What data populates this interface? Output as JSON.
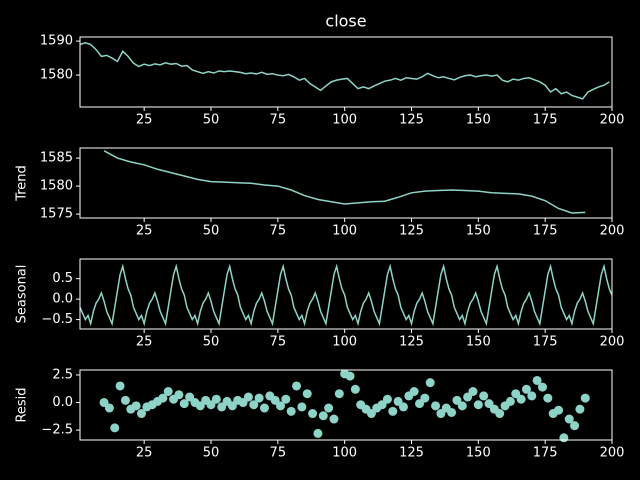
{
  "chart_data": [
    {
      "type": "line",
      "title": "close",
      "color": "#8dd3c7",
      "x": [
        1,
        3,
        5,
        7,
        9,
        11,
        13,
        15,
        17,
        19,
        21,
        23,
        25,
        27,
        29,
        31,
        33,
        35,
        37,
        39,
        41,
        43,
        45,
        47,
        49,
        51,
        53,
        55,
        57,
        59,
        61,
        63,
        65,
        67,
        69,
        71,
        73,
        75,
        77,
        79,
        81,
        83,
        85,
        87,
        89,
        91,
        93,
        95,
        97,
        99,
        101,
        103,
        105,
        107,
        109,
        111,
        113,
        115,
        117,
        119,
        121,
        123,
        125,
        127,
        129,
        131,
        133,
        135,
        137,
        139,
        141,
        143,
        145,
        147,
        149,
        151,
        153,
        155,
        157,
        159,
        161,
        163,
        165,
        167,
        169,
        171,
        173,
        175,
        177,
        179,
        181,
        183,
        185,
        187,
        189,
        191,
        193,
        195,
        197,
        199
      ],
      "values": [
        1589,
        1589.5,
        1589,
        1587.5,
        1585.5,
        1585.8,
        1585,
        1584,
        1587,
        1585.5,
        1583.5,
        1582.5,
        1583.2,
        1582.8,
        1583.3,
        1583,
        1583.6,
        1583.2,
        1583.4,
        1582.6,
        1582.8,
        1581.5,
        1581,
        1580.5,
        1581,
        1580.6,
        1581.2,
        1581,
        1581.2,
        1581,
        1580.8,
        1580.4,
        1580.6,
        1580.3,
        1580.8,
        1580.2,
        1580.4,
        1580,
        1579.8,
        1580.2,
        1579.5,
        1578.5,
        1579,
        1577.5,
        1576.5,
        1575.5,
        1576.8,
        1578,
        1578.5,
        1578.8,
        1579,
        1577.5,
        1576,
        1576.5,
        1576,
        1576.8,
        1577.5,
        1578.2,
        1578.5,
        1579,
        1578.5,
        1579.2,
        1579,
        1578.8,
        1579.5,
        1580.5,
        1579.8,
        1579.2,
        1579.5,
        1579,
        1578.6,
        1579.3,
        1579.8,
        1580,
        1579.5,
        1579.8,
        1580,
        1579.7,
        1580,
        1578.5,
        1578,
        1578.8,
        1578.5,
        1579,
        1579.2,
        1578.6,
        1578,
        1577,
        1575,
        1576,
        1574.5,
        1575,
        1574,
        1573.5,
        1573,
        1575,
        1575.8,
        1576.5,
        1577,
        1578
      ],
      "xlim": [
        1,
        200
      ],
      "xticks": [
        25,
        50,
        75,
        100,
        125,
        150,
        175,
        200
      ],
      "ylim": [
        1570.6,
        1591.2
      ],
      "yticks": [
        1580,
        1590
      ]
    },
    {
      "type": "line",
      "ylabel": "Trend",
      "color": "#8dd3c7",
      "x": [
        10,
        15,
        20,
        25,
        30,
        35,
        40,
        45,
        50,
        55,
        60,
        65,
        70,
        75,
        80,
        85,
        90,
        95,
        100,
        105,
        110,
        115,
        120,
        125,
        130,
        135,
        140,
        145,
        150,
        155,
        160,
        165,
        170,
        175,
        180,
        185,
        190
      ],
      "values": [
        1586.3,
        1585,
        1584.3,
        1583.8,
        1583,
        1582.4,
        1581.8,
        1581.2,
        1580.8,
        1580.7,
        1580.6,
        1580.5,
        1580.2,
        1580,
        1579.3,
        1578.3,
        1577.6,
        1577.2,
        1576.8,
        1577,
        1577.2,
        1577.3,
        1578,
        1578.8,
        1579.1,
        1579.2,
        1579.3,
        1579.2,
        1579.1,
        1578.8,
        1578.7,
        1578.6,
        1578.2,
        1577.4,
        1576,
        1575.2,
        1575.3
      ],
      "xlim": [
        1,
        200
      ],
      "xticks": [
        25,
        50,
        75,
        100,
        125,
        150,
        175,
        200
      ],
      "ylim": [
        1574.3,
        1586.8
      ],
      "yticks": [
        1575,
        1580,
        1585
      ]
    },
    {
      "type": "line",
      "ylabel": "Seasonal",
      "color": "#8dd3c7",
      "x": [
        1,
        2,
        3,
        4,
        5,
        6,
        7,
        8,
        9,
        10,
        11,
        12,
        13,
        14,
        15,
        16,
        17,
        18,
        19,
        20,
        21,
        22,
        23,
        24,
        25,
        26,
        27,
        28,
        29,
        30,
        31,
        32,
        33,
        34,
        35,
        36,
        37,
        38,
        39,
        40,
        41,
        42,
        43,
        44,
        45,
        46,
        47,
        48,
        49,
        50,
        51,
        52,
        53,
        54,
        55,
        56,
        57,
        58,
        59,
        60,
        61,
        62,
        63,
        64,
        65,
        66,
        67,
        68,
        69,
        70,
        71,
        72,
        73,
        74,
        75,
        76,
        77,
        78,
        79,
        80,
        81,
        82,
        83,
        84,
        85,
        86,
        87,
        88,
        89,
        90,
        91,
        92,
        93,
        94,
        95,
        96,
        97,
        98,
        99,
        100,
        101,
        102,
        103,
        104,
        105,
        106,
        107,
        108,
        109,
        110,
        111,
        112,
        113,
        114,
        115,
        116,
        117,
        118,
        119,
        120,
        121,
        122,
        123,
        124,
        125,
        126,
        127,
        128,
        129,
        130,
        131,
        132,
        133,
        134,
        135,
        136,
        137,
        138,
        139,
        140,
        141,
        142,
        143,
        144,
        145,
        146,
        147,
        148,
        149,
        150,
        151,
        152,
        153,
        154,
        155,
        156,
        157,
        158,
        159,
        160,
        161,
        162,
        163,
        164,
        165,
        166,
        167,
        168,
        169,
        170,
        171,
        172,
        173,
        174,
        175,
        176,
        177,
        178,
        179,
        180,
        181,
        182,
        183,
        184,
        185,
        186,
        187,
        188,
        189,
        190,
        191,
        192,
        193,
        194,
        195,
        196,
        197,
        198,
        199,
        200
      ],
      "values": [
        -0.2,
        -0.35,
        -0.5,
        -0.4,
        -0.6,
        -0.3,
        -0.1,
        0,
        0.15,
        -0.05,
        -0.3,
        -0.45,
        -0.6,
        -0.2,
        0.2,
        0.6,
        0.8,
        0.5,
        0.25,
        0.1,
        -0.2,
        -0.35,
        -0.5,
        -0.4,
        -0.6,
        -0.3,
        -0.1,
        0,
        0.15,
        -0.05,
        -0.3,
        -0.45,
        -0.6,
        -0.2,
        0.2,
        0.6,
        0.8,
        0.5,
        0.25,
        0.1,
        -0.2,
        -0.35,
        -0.5,
        -0.4,
        -0.6,
        -0.3,
        -0.1,
        0,
        0.15,
        -0.05,
        -0.3,
        -0.45,
        -0.6,
        -0.2,
        0.2,
        0.6,
        0.8,
        0.5,
        0.25,
        0.1,
        -0.2,
        -0.35,
        -0.5,
        -0.4,
        -0.6,
        -0.3,
        -0.1,
        0,
        0.15,
        -0.05,
        -0.3,
        -0.45,
        -0.6,
        -0.2,
        0.2,
        0.6,
        0.8,
        0.5,
        0.25,
        0.1,
        -0.2,
        -0.35,
        -0.5,
        -0.4,
        -0.6,
        -0.3,
        -0.1,
        0,
        0.15,
        -0.05,
        -0.3,
        -0.45,
        -0.6,
        -0.2,
        0.2,
        0.6,
        0.8,
        0.5,
        0.25,
        0.1,
        -0.2,
        -0.35,
        -0.5,
        -0.4,
        -0.6,
        -0.3,
        -0.1,
        0,
        0.15,
        -0.05,
        -0.3,
        -0.45,
        -0.6,
        -0.2,
        0.2,
        0.6,
        0.8,
        0.5,
        0.25,
        0.1,
        -0.2,
        -0.35,
        -0.5,
        -0.4,
        -0.6,
        -0.3,
        -0.1,
        0,
        0.15,
        -0.05,
        -0.3,
        -0.45,
        -0.6,
        -0.2,
        0.2,
        0.6,
        0.8,
        0.5,
        0.25,
        0.1,
        -0.2,
        -0.35,
        -0.5,
        -0.4,
        -0.6,
        -0.3,
        -0.1,
        0,
        0.15,
        -0.05,
        -0.3,
        -0.45,
        -0.6,
        -0.2,
        0.2,
        0.6,
        0.8,
        0.5,
        0.25,
        0.1,
        -0.2,
        -0.35,
        -0.5,
        -0.4,
        -0.6,
        -0.3,
        -0.1,
        0,
        0.15,
        -0.05,
        -0.3,
        -0.45,
        -0.6,
        -0.2,
        0.2,
        0.6,
        0.8,
        0.5,
        0.25,
        0.1,
        -0.2,
        -0.35,
        -0.5,
        -0.4,
        -0.6,
        -0.3,
        -0.1,
        0,
        0.15,
        -0.05,
        -0.3,
        -0.45,
        -0.6,
        -0.2,
        0.2,
        0.6,
        0.8,
        0.5,
        0.25,
        0.1
      ],
      "xlim": [
        1,
        200
      ],
      "xticks": [
        25,
        50,
        75,
        100,
        125,
        150,
        175,
        200
      ],
      "ylim": [
        -0.73,
        0.98
      ],
      "yticks": [
        {
          "value": -0.5,
          "label": "−0.5"
        },
        {
          "value": 0,
          "label": "0.0"
        },
        0.5
      ]
    },
    {
      "type": "scatter",
      "ylabel": "Resid",
      "color": "#8dd3c7",
      "x": [
        10,
        12,
        14,
        16,
        18,
        20,
        22,
        24,
        26,
        28,
        30,
        32,
        34,
        36,
        38,
        40,
        42,
        44,
        46,
        48,
        50,
        52,
        54,
        56,
        58,
        60,
        62,
        64,
        66,
        68,
        70,
        72,
        74,
        76,
        78,
        80,
        82,
        84,
        86,
        88,
        90,
        92,
        94,
        96,
        98,
        100,
        102,
        104,
        106,
        108,
        110,
        112,
        114,
        116,
        118,
        120,
        122,
        124,
        126,
        128,
        130,
        132,
        134,
        136,
        138,
        140,
        142,
        144,
        146,
        148,
        150,
        152,
        154,
        156,
        158,
        160,
        162,
        164,
        166,
        168,
        170,
        172,
        174,
        176,
        178,
        180,
        182,
        184,
        186,
        188,
        190
      ],
      "values": [
        0,
        -0.5,
        -2.3,
        1.5,
        0.2,
        -0.6,
        -0.3,
        -1,
        -0.4,
        -0.2,
        0.1,
        0.4,
        1,
        0.3,
        0.7,
        -0.1,
        0.5,
        0,
        -0.3,
        0.2,
        -0.2,
        0.3,
        -0.4,
        0.1,
        -0.3,
        0.2,
        0,
        0.5,
        -0.2,
        0.4,
        -0.5,
        0.6,
        0.2,
        -0.3,
        0.3,
        -0.8,
        1.5,
        -0.4,
        0.8,
        -1,
        -2.8,
        -1.2,
        -0.5,
        -1.5,
        0.8,
        2.6,
        2.4,
        1.2,
        -0.2,
        -0.6,
        -1,
        -0.5,
        -0.2,
        0.3,
        -0.8,
        0.1,
        -0.4,
        0.6,
        1,
        -0.1,
        0.4,
        1.8,
        -0.3,
        -1,
        -0.5,
        -0.9,
        0.2,
        -0.3,
        0.5,
        1,
        -0.2,
        0.6,
        -0.1,
        -0.6,
        -1,
        -0.3,
        0.1,
        0.8,
        0.3,
        1.2,
        0.6,
        2,
        1.4,
        0.4,
        -1,
        -0.7,
        -3.2,
        -1.5,
        -2.1,
        -0.6,
        0.4
      ],
      "xlim": [
        1,
        200
      ],
      "xticks": [
        25,
        50,
        75,
        100,
        125,
        150,
        175,
        200
      ],
      "ylim": [
        -3.4,
        2.95
      ],
      "yticks": [
        {
          "value": -2.5,
          "label": "−2.5"
        },
        {
          "value": 0,
          "label": "0.0"
        },
        2.5
      ]
    }
  ]
}
